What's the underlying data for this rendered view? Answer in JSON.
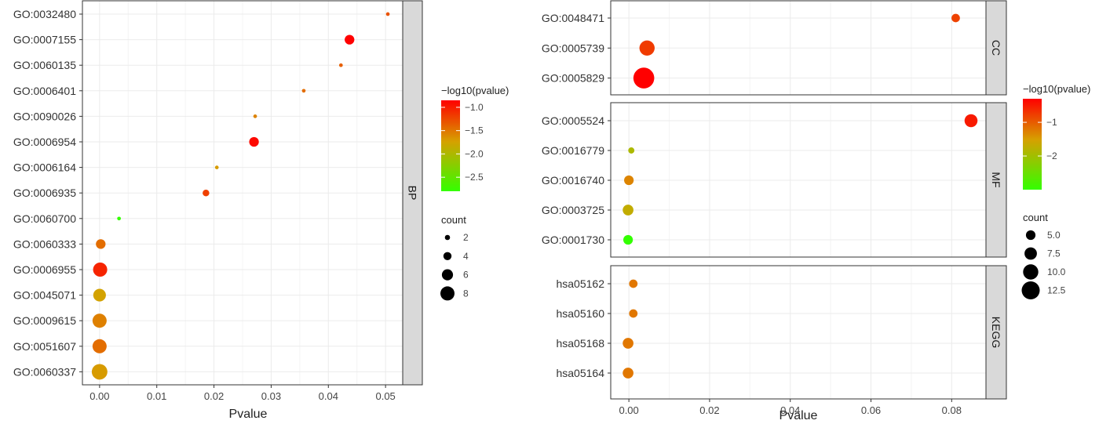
{
  "colors": {
    "gradient_high": "#ff0000",
    "gradient_mid": "#d6a000",
    "gradient_low": "#33ff00",
    "strip_fill": "#d9d9d9",
    "grid": "#ebebeb",
    "panel_border": "#333333"
  },
  "chart_data": [
    {
      "type": "scatter",
      "xlabel": "Pvalue",
      "xlim": [
        -0.003,
        0.053
      ],
      "x_ticks": [
        "0.00",
        "0.01",
        "0.02",
        "0.03",
        "0.04",
        "0.05"
      ],
      "x_tick_values": [
        0,
        0.01,
        0.02,
        0.03,
        0.04,
        0.05
      ],
      "panels": [
        {
          "strip": "BP",
          "points": [
            {
              "term": "GO:0032480",
              "pvalue": 0.0504,
              "count": 1,
              "neglog10": -1.3
            },
            {
              "term": "GO:0007155",
              "pvalue": 0.0437,
              "count": 5,
              "neglog10": -0.85
            },
            {
              "term": "GO:0060135",
              "pvalue": 0.0422,
              "count": 1,
              "neglog10": -1.37
            },
            {
              "term": "GO:0006401",
              "pvalue": 0.0357,
              "count": 1,
              "neglog10": -1.45
            },
            {
              "term": "GO:0090026",
              "pvalue": 0.0272,
              "count": 1,
              "neglog10": -1.57
            },
            {
              "term": "GO:0006954",
              "pvalue": 0.027,
              "count": 5,
              "neglog10": -0.9
            },
            {
              "term": "GO:0006164",
              "pvalue": 0.0205,
              "count": 1,
              "neglog10": -1.7
            },
            {
              "term": "GO:0006935",
              "pvalue": 0.0186,
              "count": 3,
              "neglog10": -1.2
            },
            {
              "term": "GO:0060700",
              "pvalue": 0.0034,
              "count": 1,
              "neglog10": -2.8
            },
            {
              "term": "GO:0060333",
              "pvalue": 0.0002,
              "count": 5,
              "neglog10": -1.45
            },
            {
              "term": "GO:0006955",
              "pvalue": 0.0001,
              "count": 8,
              "neglog10": -1.05
            },
            {
              "term": "GO:0045071",
              "pvalue": 0.0,
              "count": 7,
              "neglog10": -1.75
            },
            {
              "term": "GO:0009615",
              "pvalue": 0.0,
              "count": 8,
              "neglog10": -1.55
            },
            {
              "term": "GO:0051607",
              "pvalue": 0.0,
              "count": 8,
              "neglog10": -1.45
            },
            {
              "term": "GO:0060337",
              "pvalue": 0.0,
              "count": 9,
              "neglog10": -1.7
            }
          ]
        }
      ],
      "legend_color": {
        "title": "−log10(pvalue)",
        "min": -2.8,
        "max": -0.85,
        "ticks": [
          "−1.0",
          "−1.5",
          "−2.0",
          "−2.5"
        ],
        "tick_values": [
          -1.0,
          -1.5,
          -2.0,
          -2.5
        ]
      },
      "legend_size": {
        "title": "count",
        "labels": [
          "2",
          "4",
          "6",
          "8"
        ],
        "values": [
          2,
          4,
          6,
          8
        ]
      }
    },
    {
      "type": "scatter",
      "xlabel": "Pvalue",
      "xlim": [
        -0.0045,
        0.0885
      ],
      "x_ticks": [
        "0.00",
        "0.02",
        "0.04",
        "0.06",
        "0.08"
      ],
      "x_tick_values": [
        0,
        0.02,
        0.04,
        0.06,
        0.08
      ],
      "panels": [
        {
          "strip": "CC",
          "points": [
            {
              "term": "GO:0048471",
              "pvalue": 0.081,
              "count": 4,
              "neglog10": -0.8
            },
            {
              "term": "GO:0005739",
              "pvalue": 0.0045,
              "count": 10,
              "neglog10": -0.75
            },
            {
              "term": "GO:0005829",
              "pvalue": 0.0037,
              "count": 15,
              "neglog10": -0.3
            }
          ]
        },
        {
          "strip": "MF",
          "points": [
            {
              "term": "GO:0005524",
              "pvalue": 0.0848,
              "count": 8,
              "neglog10": -0.5
            },
            {
              "term": "GO:0016779",
              "pvalue": 0.0006,
              "count": 2,
              "neglog10": -1.9
            },
            {
              "term": "GO:0016740",
              "pvalue": 0.0,
              "count": 5,
              "neglog10": -1.3
            },
            {
              "term": "GO:0003725",
              "pvalue": -0.0002,
              "count": 6,
              "neglog10": -1.7
            },
            {
              "term": "GO:0001730",
              "pvalue": -0.0002,
              "count": 5,
              "neglog10": -3.0
            }
          ]
        },
        {
          "strip": "KEGG",
          "points": [
            {
              "term": "hsa05162",
              "pvalue": 0.0011,
              "count": 4,
              "neglog10": -1.2
            },
            {
              "term": "hsa05160",
              "pvalue": 0.0011,
              "count": 4,
              "neglog10": -1.2
            },
            {
              "term": "hsa05168",
              "pvalue": -0.0002,
              "count": 6,
              "neglog10": -1.2
            },
            {
              "term": "hsa05164",
              "pvalue": -0.0002,
              "count": 6,
              "neglog10": -1.2
            }
          ]
        }
      ],
      "legend_color": {
        "title": "−log10(pvalue)",
        "min": -3.0,
        "max": -0.3,
        "ticks": [
          "−1",
          "−2"
        ],
        "tick_values": [
          -1,
          -2
        ]
      },
      "legend_size": {
        "title": "count",
        "labels": [
          "5.0",
          "7.5",
          "10.0",
          "12.5"
        ],
        "values": [
          5.0,
          7.5,
          10.0,
          12.5
        ]
      }
    }
  ]
}
